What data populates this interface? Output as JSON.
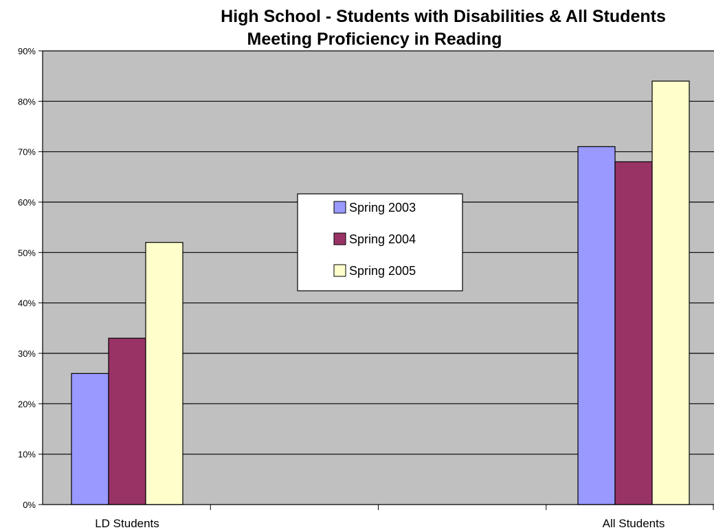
{
  "chart_data": {
    "type": "bar",
    "title": "High School - Students with Disabilities & All Students",
    "subtitle": "Meeting Proficiency  in Reading",
    "categories": [
      "LD Students",
      "All Students"
    ],
    "series": [
      {
        "name": "Spring 2003",
        "color": "#9999ff",
        "values": [
          26,
          71
        ]
      },
      {
        "name": "Spring 2004",
        "color": "#993366",
        "values": [
          33,
          68
        ]
      },
      {
        "name": "Spring 2005",
        "color": "#ffffcc",
        "values": [
          52,
          84
        ]
      }
    ],
    "ylim": [
      0,
      90
    ],
    "yticks": [
      "0%",
      "10%",
      "20%",
      "30%",
      "40%",
      "50%",
      "60%",
      "70%",
      "80%",
      "90%"
    ],
    "grid": true,
    "plot_background": "#c0c0c0",
    "legend_position": "center"
  }
}
